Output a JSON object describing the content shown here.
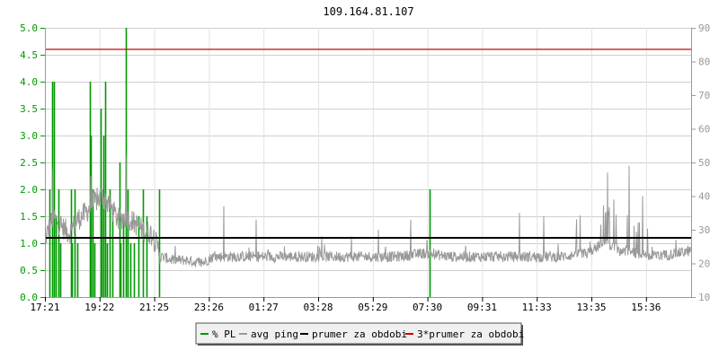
{
  "chart_data": {
    "type": "line",
    "title": "109.164.81.107",
    "x_tick_labels": [
      "17:21",
      "19:22",
      "21:25",
      "23:26",
      "01:27",
      "03:28",
      "05:29",
      "07:30",
      "09:31",
      "11:33",
      "13:35",
      "15:36"
    ],
    "left_axis": {
      "ylim": [
        0,
        5
      ],
      "ticks": [
        "0.0",
        "0.5",
        "1.0",
        "1.5",
        "2.0",
        "2.5",
        "3.0",
        "3.5",
        "4.0",
        "4.5",
        "5.0"
      ],
      "color": "#009900"
    },
    "right_axis": {
      "ylim": [
        10,
        90
      ],
      "ticks": [
        "10",
        "20",
        "30",
        "40",
        "50",
        "60",
        "70",
        "80",
        "90"
      ],
      "color": "#999999"
    },
    "grid": true,
    "legend_position": "bottom-center",
    "series": [
      {
        "name": "% PL",
        "axis": "left",
        "color": "#009900",
        "style": "bars",
        "points": [
          [
            0.15,
            2.0
          ],
          [
            0.25,
            4.0
          ],
          [
            0.32,
            4.0
          ],
          [
            0.4,
            1.5
          ],
          [
            0.5,
            2.0
          ],
          [
            0.55,
            1.0
          ],
          [
            0.95,
            2.0
          ],
          [
            1.0,
            1.0
          ],
          [
            1.1,
            2.0
          ],
          [
            1.2,
            1.0
          ],
          [
            1.65,
            4.0
          ],
          [
            1.7,
            3.0
          ],
          [
            1.75,
            2.0
          ],
          [
            1.82,
            1.0
          ],
          [
            2.05,
            3.5
          ],
          [
            2.1,
            2.0
          ],
          [
            2.15,
            3.0
          ],
          [
            2.22,
            4.0
          ],
          [
            2.3,
            1.0
          ],
          [
            2.4,
            2.0
          ],
          [
            2.5,
            1.5
          ],
          [
            2.75,
            2.5
          ],
          [
            2.8,
            1.0
          ],
          [
            2.9,
            1.5
          ],
          [
            2.98,
            5.0
          ],
          [
            3.05,
            2.0
          ],
          [
            3.15,
            1.0
          ],
          [
            3.3,
            1.0
          ],
          [
            3.45,
            1.5
          ],
          [
            3.6,
            2.0
          ],
          [
            3.75,
            1.5
          ],
          [
            4.2,
            2.0
          ],
          [
            14.2,
            2.0
          ]
        ]
      },
      {
        "name": "avg ping",
        "axis": "right",
        "color": "#999999",
        "style": "line",
        "anchors": [
          [
            0,
            27
          ],
          [
            0.3,
            34
          ],
          [
            0.6,
            31
          ],
          [
            0.9,
            29
          ],
          [
            1.2,
            33
          ],
          [
            1.5,
            35
          ],
          [
            1.8,
            38
          ],
          [
            2.1,
            40
          ],
          [
            2.4,
            37
          ],
          [
            2.7,
            33
          ],
          [
            3.0,
            34
          ],
          [
            3.3,
            32
          ],
          [
            3.6,
            30
          ],
          [
            3.9,
            29
          ],
          [
            4.1,
            26
          ],
          [
            4.3,
            22
          ],
          [
            4.7,
            21
          ],
          [
            5.2,
            21
          ],
          [
            5.8,
            20
          ],
          [
            6.2,
            22
          ],
          [
            7.0,
            22
          ],
          [
            8.0,
            22
          ],
          [
            9.0,
            22
          ],
          [
            10.0,
            22
          ],
          [
            11.0,
            22
          ],
          [
            12.0,
            22
          ],
          [
            13.0,
            22
          ],
          [
            14.0,
            23
          ],
          [
            15.0,
            22
          ],
          [
            16.0,
            22
          ],
          [
            17.0,
            22
          ],
          [
            18.0,
            22
          ],
          [
            19.0,
            22
          ],
          [
            20.0,
            23
          ],
          [
            20.6,
            26
          ],
          [
            21.2,
            24
          ],
          [
            22.0,
            23
          ],
          [
            22.5,
            22
          ],
          [
            23.3,
            23
          ],
          [
            24.0,
            24
          ],
          [
            24.4,
            24
          ]
        ],
        "spikes": [
          [
            0.3,
            48
          ],
          [
            1.7,
            46
          ],
          [
            2.98,
            52
          ],
          [
            6.6,
            37
          ],
          [
            7.8,
            33
          ],
          [
            10.2,
            28
          ],
          [
            11.3,
            28
          ],
          [
            12.3,
            30
          ],
          [
            13.5,
            33
          ],
          [
            17.5,
            35
          ],
          [
            18.4,
            34
          ],
          [
            19.6,
            28
          ],
          [
            20.75,
            47
          ],
          [
            21.0,
            39
          ],
          [
            21.55,
            49
          ],
          [
            22.05,
            40
          ],
          [
            23.3,
            27
          ]
        ]
      },
      {
        "name": "prumer za obdobi",
        "axis": "left",
        "color": "#000000",
        "style": "hline",
        "value": 1.1
      },
      {
        "name": "3*prumer za obdobi",
        "axis": "left",
        "color": "#cc0000",
        "style": "hline",
        "value": 4.6
      }
    ]
  }
}
